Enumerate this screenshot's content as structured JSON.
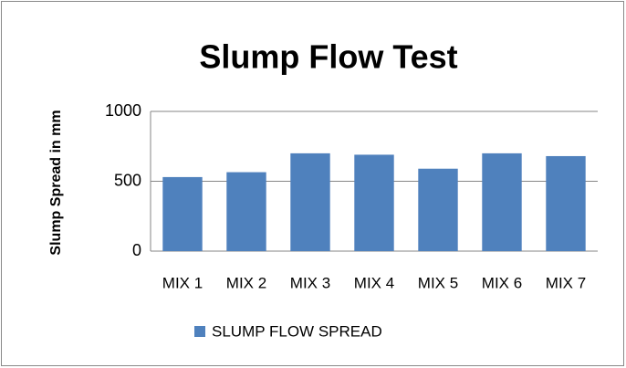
{
  "chart_data": {
    "type": "bar",
    "title": "Slump Flow Test",
    "ylabel": "Slump Spread in mm",
    "categories": [
      "MIX 1",
      "MIX 2",
      "MIX 3",
      "MIX 4",
      "MIX 5",
      "MIX 6",
      "MIX 7"
    ],
    "series": [
      {
        "name": "SLUMP FLOW SPREAD",
        "color": "#4f81bd",
        "values": [
          530,
          565,
          700,
          690,
          590,
          700,
          680
        ]
      }
    ],
    "ylim": [
      0,
      1000
    ],
    "yticks": [
      0,
      500,
      1000
    ],
    "grid": true,
    "legend": "bottom"
  }
}
